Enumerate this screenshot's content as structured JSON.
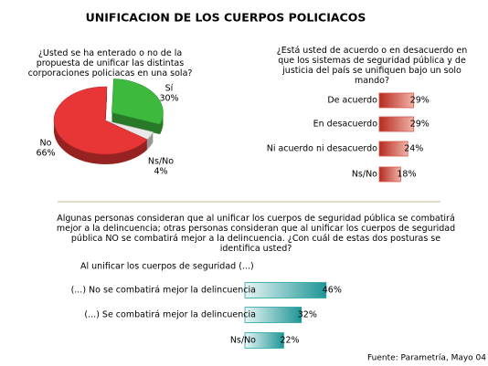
{
  "title": "UNIFICACION DE LOS CUERPOS POLICIACOS",
  "source": "Fuente: Parametría, Mayo 04",
  "chart_data": [
    {
      "type": "pie",
      "title": "¿Usted se ha enterado o no de la propuesta de unificar las distintas corporaciones policiacas en una sola?",
      "categories": [
        "Sí",
        "Ns/No",
        "No"
      ],
      "values": [
        30,
        4,
        66
      ],
      "value_labels": [
        "30%",
        "4%",
        "66%"
      ],
      "colors": [
        "#3dba3d",
        "#e8e8e8",
        "#e83535"
      ]
    },
    {
      "type": "bar",
      "title": "¿Está usted de acuerdo o en desacuerdo en que los sistemas de seguridad pública y de justicia del país se unifiquen bajo un solo mando?",
      "categories": [
        "De acuerdo",
        "En desacuerdo",
        "Ni acuerdo ni desacuerdo",
        "Ns/No"
      ],
      "values": [
        29,
        29,
        24,
        18
      ],
      "value_labels": [
        "29%",
        "29%",
        "24%",
        "18%"
      ],
      "color": "#d8584a"
    },
    {
      "type": "bar",
      "title": "Algunas personas consideran que al unificar los cuerpos de seguridad pública se combatirá mejor a la delincuencia; otras personas consideran que al unificar los cuerpos de seguridad pública NO se combatirá  mejor a la delincuencia. ¿Con cuál de estas dos posturas se identifica usted?",
      "subtitle": "Al unificar los cuerpos de seguridad (...)",
      "categories": [
        "(...) No se combatirá mejor la delincuencia",
        "(...) Se combatirá mejor la delincuencia",
        "Ns/No"
      ],
      "values": [
        46,
        32,
        22
      ],
      "value_labels": [
        "46%",
        "32%",
        "22%"
      ],
      "color": "#2aa3a3"
    }
  ]
}
